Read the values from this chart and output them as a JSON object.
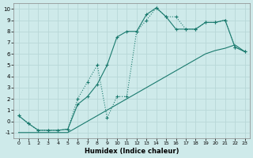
{
  "xlabel": "Humidex (Indice chaleur)",
  "bg_color": "#ceeaea",
  "grid_color": "#b8d8d8",
  "line_color": "#1a7a6e",
  "xlim": [
    -0.5,
    23.5
  ],
  "ylim": [
    -1.5,
    10.5
  ],
  "xticks": [
    0,
    1,
    2,
    3,
    4,
    5,
    6,
    7,
    8,
    9,
    10,
    11,
    12,
    13,
    14,
    15,
    16,
    17,
    18,
    19,
    20,
    21,
    22,
    23
  ],
  "yticks": [
    -1,
    0,
    1,
    2,
    3,
    4,
    5,
    6,
    7,
    8,
    9,
    10
  ],
  "line1_x": [
    0,
    1,
    2,
    3,
    4,
    5,
    6,
    7,
    8,
    9,
    10,
    11,
    12,
    13,
    14,
    15,
    16,
    17,
    18,
    19,
    20,
    21,
    22,
    23
  ],
  "line1_y": [
    0.5,
    -0.2,
    -0.8,
    -0.8,
    -0.8,
    -0.7,
    2.0,
    3.5,
    5.0,
    0.3,
    2.2,
    2.2,
    8.0,
    9.0,
    10.1,
    9.3,
    9.3,
    8.2,
    8.2,
    8.8,
    8.8,
    9.0,
    6.6,
    6.2
  ],
  "line2_x": [
    0,
    1,
    2,
    3,
    4,
    5,
    6,
    7,
    8,
    9,
    10,
    11,
    12,
    13,
    14,
    15,
    16,
    17,
    18,
    19,
    20,
    21,
    22,
    23
  ],
  "line2_y": [
    -1.0,
    -1.0,
    -1.0,
    -1.0,
    -1.0,
    -1.0,
    -0.5,
    0.0,
    0.5,
    1.0,
    1.5,
    2.0,
    2.5,
    3.0,
    3.5,
    4.0,
    4.5,
    5.0,
    5.5,
    6.0,
    6.3,
    6.5,
    6.8,
    6.2
  ],
  "line3_x": [
    0,
    1,
    2,
    3,
    4,
    5,
    6,
    7,
    8,
    9,
    10,
    11,
    12,
    13,
    14,
    15,
    16,
    17,
    18,
    19,
    20,
    21,
    22,
    23
  ],
  "line3_y": [
    0.5,
    -0.2,
    -0.8,
    -0.8,
    -0.8,
    -0.7,
    1.5,
    2.2,
    3.3,
    5.0,
    7.5,
    8.0,
    8.0,
    9.5,
    10.1,
    9.3,
    8.2,
    8.2,
    8.2,
    8.8,
    8.8,
    9.0,
    6.6,
    6.2
  ]
}
